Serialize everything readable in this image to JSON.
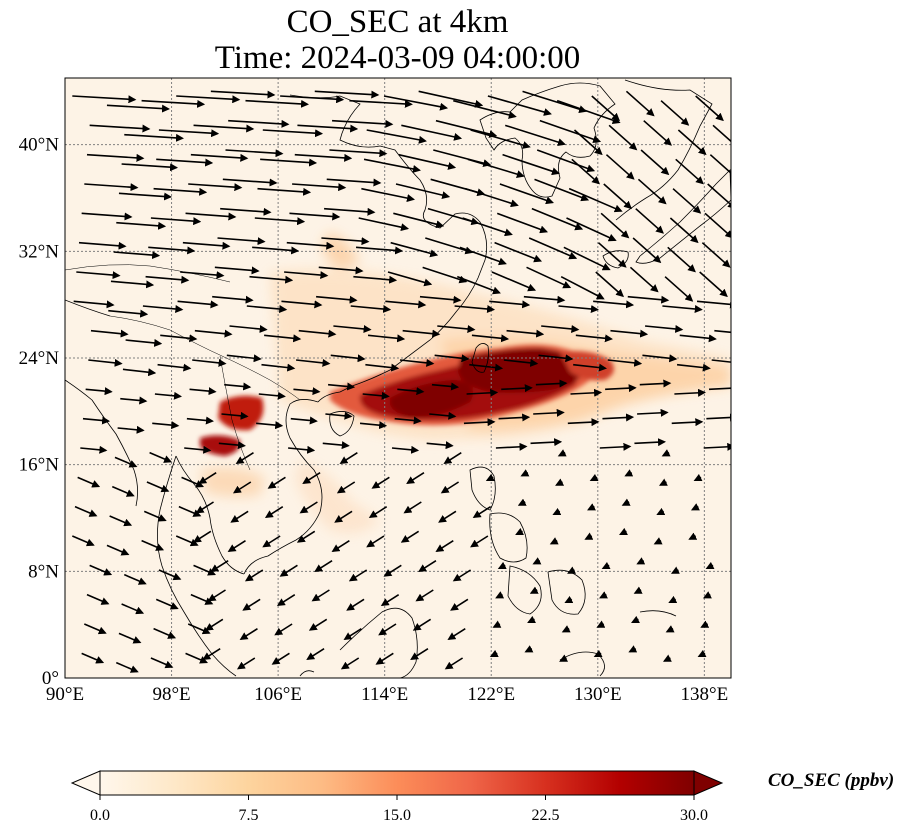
{
  "title": {
    "line1": "CO_SEC at 4km",
    "line2": "Time: 2024-03-09 04:00:00"
  },
  "map": {
    "lon_range": [
      90,
      140
    ],
    "lat_range": [
      0,
      45
    ],
    "lon_ticks": [
      "90°E",
      "98°E",
      "106°E",
      "114°E",
      "122°E",
      "130°E",
      "138°E"
    ],
    "lat_ticks": [
      "0°",
      "8°N",
      "16°N",
      "24°N",
      "32°N",
      "40°N"
    ],
    "gridlines": true,
    "coastlines": true
  },
  "colorbar": {
    "label": "CO_SEC (ppbv)",
    "ticks": [
      "0.0",
      "7.5",
      "15.0",
      "22.5",
      "30.0"
    ],
    "range": [
      0,
      30
    ],
    "extend": "both",
    "colormap": "OrRd",
    "colors": [
      "#fff7ec",
      "#fee8c8",
      "#fdd49e",
      "#fdbb84",
      "#fc8d59",
      "#ef6548",
      "#d7301f",
      "#b30000",
      "#7f0000"
    ]
  }
}
